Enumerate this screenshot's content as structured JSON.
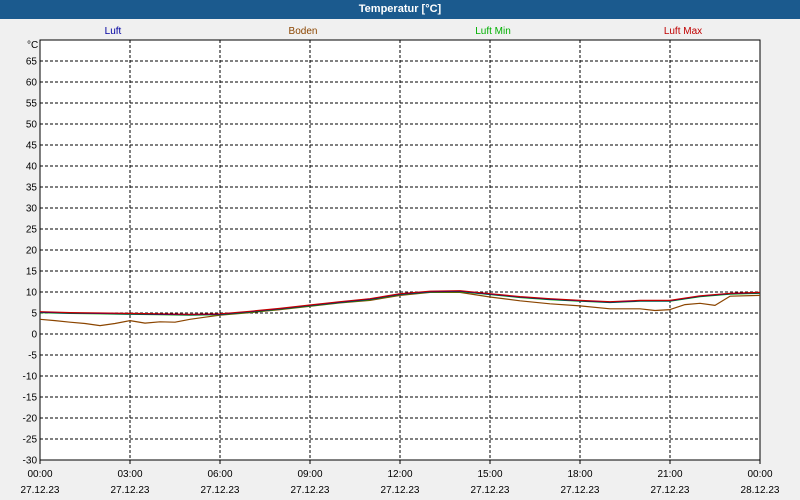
{
  "window": {
    "title": "Temperatur [°C]"
  },
  "colors": {
    "titlebar": "#1b5a8e",
    "luft": "#0000a0",
    "boden": "#8b4500",
    "luft_min": "#00b000",
    "luft_max": "#c00000"
  },
  "chart_data": {
    "type": "line",
    "title": "Temperatur [°C]",
    "ylabel": "°C",
    "xlabel": "",
    "ylim": [
      -30,
      70
    ],
    "yticks": [
      "65",
      "60",
      "55",
      "50",
      "45",
      "40",
      "35",
      "30",
      "25",
      "20",
      "15",
      "10",
      "5",
      "0",
      "-5",
      "-10",
      "-15",
      "-20",
      "-25",
      "-30"
    ],
    "yticks_values": [
      65,
      60,
      55,
      50,
      45,
      40,
      35,
      30,
      25,
      20,
      15,
      10,
      5,
      0,
      -5,
      -10,
      -15,
      -20,
      -25,
      -30
    ],
    "xlim": [
      0,
      24
    ],
    "xticks_time": [
      "00:00",
      "03:00",
      "06:00",
      "09:00",
      "12:00",
      "15:00",
      "18:00",
      "21:00",
      "00:00"
    ],
    "xticks_date": [
      "27.12.23",
      "27.12.23",
      "27.12.23",
      "27.12.23",
      "27.12.23",
      "27.12.23",
      "27.12.23",
      "27.12.23",
      "28.12.23"
    ],
    "xticks_hours": [
      0,
      3,
      6,
      9,
      12,
      15,
      18,
      21,
      24
    ],
    "grid": true,
    "legend_position": "top",
    "series": [
      {
        "name": "Luft",
        "color": "#0000a0",
        "x": [
          0,
          1,
          2,
          3,
          4,
          5,
          6,
          7,
          8,
          9,
          10,
          11,
          12,
          13,
          14,
          15,
          16,
          17,
          18,
          19,
          20,
          21,
          22,
          23,
          24
        ],
        "y": [
          5.2,
          5.0,
          4.9,
          4.8,
          4.7,
          4.6,
          4.7,
          5.3,
          6.0,
          6.8,
          7.6,
          8.3,
          9.5,
          10.1,
          10.2,
          9.5,
          8.8,
          8.3,
          7.9,
          7.6,
          7.9,
          7.9,
          9.0,
          9.6,
          9.8
        ]
      },
      {
        "name": "Boden",
        "color": "#8b4500",
        "x": [
          0,
          0.5,
          1,
          1.5,
          2,
          2.5,
          3,
          3.5,
          4,
          4.5,
          5,
          5.5,
          6,
          7,
          8,
          9,
          10,
          11,
          12,
          13,
          14,
          15,
          16,
          17,
          18,
          19,
          20,
          20.5,
          21,
          21.5,
          22,
          22.5,
          23,
          24
        ],
        "y": [
          3.5,
          3.2,
          2.8,
          2.5,
          2.0,
          2.5,
          3.2,
          2.6,
          2.9,
          2.8,
          3.5,
          4.0,
          4.5,
          5.1,
          5.8,
          6.6,
          7.4,
          8.0,
          9.2,
          9.9,
          9.9,
          8.8,
          7.9,
          7.2,
          6.7,
          6.0,
          6.0,
          5.6,
          5.8,
          7.0,
          7.3,
          6.8,
          9.0,
          9.2
        ]
      },
      {
        "name": "Luft Min",
        "color": "#00b000",
        "x": [
          0,
          1,
          2,
          3,
          4,
          5,
          6,
          7,
          8,
          9,
          10,
          11,
          12,
          13,
          14,
          15,
          16,
          17,
          18,
          19,
          20,
          21,
          22,
          23,
          24
        ],
        "y": [
          5.1,
          4.9,
          4.8,
          4.7,
          4.6,
          4.5,
          4.6,
          5.2,
          5.9,
          6.7,
          7.5,
          8.2,
          9.4,
          10.0,
          10.1,
          9.4,
          8.7,
          8.2,
          7.8,
          7.5,
          7.8,
          7.8,
          8.9,
          9.5,
          9.7
        ]
      },
      {
        "name": "Luft Max",
        "color": "#c00000",
        "x": [
          0,
          1,
          2,
          3,
          4,
          5,
          6,
          7,
          8,
          9,
          10,
          11,
          12,
          13,
          14,
          15,
          16,
          17,
          18,
          19,
          20,
          21,
          22,
          23,
          24
        ],
        "y": [
          5.3,
          5.1,
          5.0,
          4.9,
          4.8,
          4.7,
          4.8,
          5.4,
          6.1,
          6.9,
          7.7,
          8.4,
          9.6,
          10.2,
          10.3,
          9.6,
          8.9,
          8.4,
          8.0,
          7.7,
          8.0,
          8.0,
          9.1,
          9.7,
          9.9
        ]
      }
    ]
  }
}
